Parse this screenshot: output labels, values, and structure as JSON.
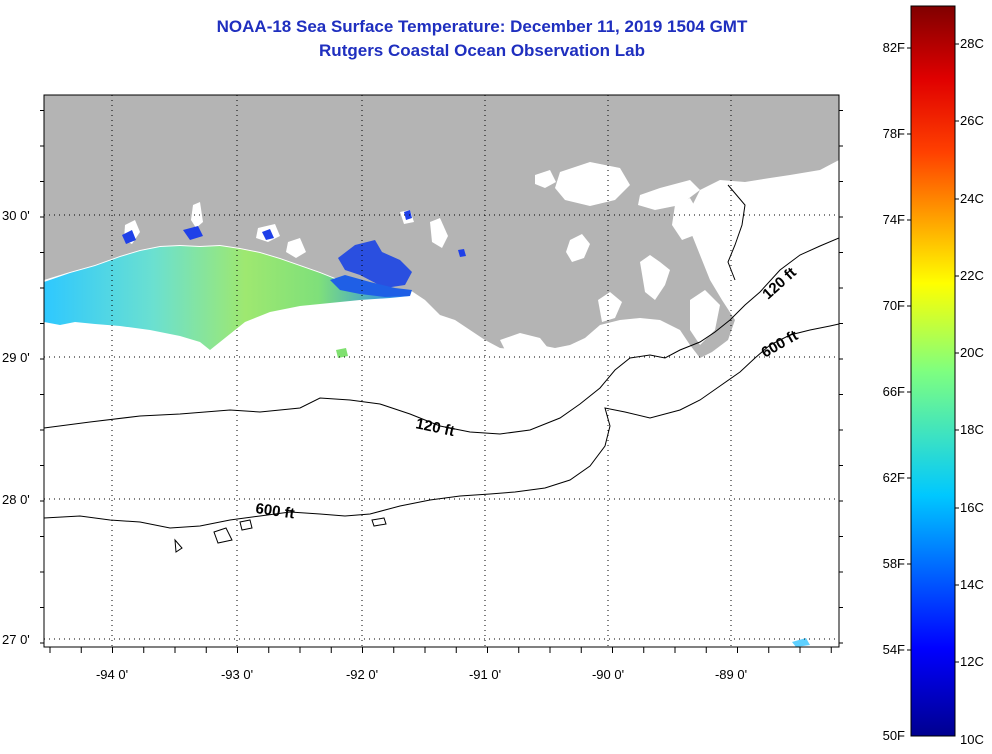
{
  "header": {
    "title": "NOAA-18 Sea Surface Temperature:  December 11, 2019 1504 GMT",
    "subtitle": "Rutgers Coastal Ocean Observation Lab"
  },
  "axes": {
    "lat_labels": [
      "30 0'",
      "29 0'",
      "28 0'",
      "27 0'"
    ],
    "lon_labels": [
      "-94 0'",
      "-93 0'",
      "-92 0'",
      "-91 0'",
      "-90 0'",
      "-89 0'"
    ]
  },
  "contours": {
    "isobath_120": "120 ft",
    "isobath_600": "600 ft",
    "label_120_east": "120 ft",
    "label_600_east": "600 ft"
  },
  "colorbar": {
    "fahrenheit_labels": [
      "82F",
      "78F",
      "74F",
      "70F",
      "66F",
      "62F",
      "58F",
      "54F",
      "50F"
    ],
    "celsius_labels": [
      "28C",
      "26C",
      "24C",
      "22C",
      "20C",
      "18C",
      "16C",
      "14C",
      "12C",
      "10C"
    ]
  },
  "colors": {
    "title": "#1f2fbf",
    "land": "#b4b4b4",
    "ocean_nodata": "#ffffff",
    "grid": "#000000"
  }
}
